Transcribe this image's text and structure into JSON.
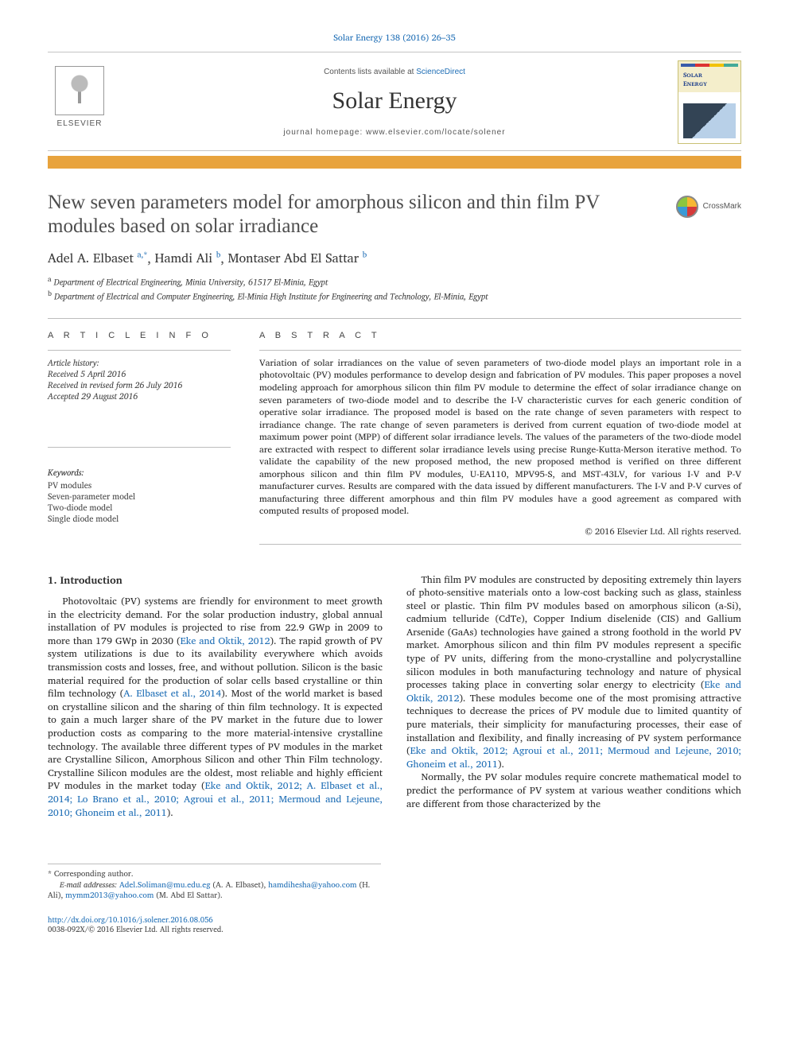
{
  "citation": {
    "text": "Solar Energy 138 (2016) 26–35"
  },
  "header": {
    "contents_prefix": "Contents lists available at ",
    "contents_link": "ScienceDirect",
    "journal": "Solar Energy",
    "homepage_prefix": "journal homepage: ",
    "homepage_url": "www.elsevier.com/locate/solener",
    "publisher_wordmark": "ELSEVIER",
    "cover_title_line1": "Solar",
    "cover_title_line2": "Energy"
  },
  "crossmark_label": "CrossMark",
  "title": "New seven parameters model for amorphous silicon and thin film PV modules based on solar irradiance",
  "authors": [
    {
      "name": "Adel A. Elbaset",
      "sup": "a,",
      "corr": "*"
    },
    {
      "name": "Hamdi Ali",
      "sup": "b"
    },
    {
      "name": "Montaser Abd El Sattar",
      "sup": "b"
    }
  ],
  "affiliations": [
    {
      "sup": "a",
      "text": "Department of Electrical Engineering, Minia University, 61517 El-Minia, Egypt"
    },
    {
      "sup": "b",
      "text": "Department of Electrical and Computer Engineering, El-Minia High Institute for Engineering and Technology, El-Minia, Egypt"
    }
  ],
  "info": {
    "heading": "A R T I C L E   I N F O",
    "history_label": "Article history:",
    "received": "Received 5 April 2016",
    "revised": "Received in revised form 26 July 2016",
    "accepted": "Accepted 29 August 2016",
    "keywords_label": "Keywords:",
    "keywords": [
      "PV modules",
      "Seven-parameter model",
      "Two-diode model",
      "Single diode model"
    ]
  },
  "abstract": {
    "heading": "A B S T R A C T",
    "text": "Variation of solar irradiances on the value of seven parameters of two-diode model plays an important role in a photovoltaic (PV) modules performance to develop design and fabrication of PV modules. This paper proposes a novel modeling approach for amorphous silicon thin film PV module to determine the effect of solar irradiance change on seven parameters of two-diode model and to describe the I-V characteristic curves for each generic condition of operative solar irradiance. The proposed model is based on the rate change of seven parameters with respect to irradiance change. The rate change of seven parameters is derived from current equation of two-diode model at maximum power point (MPP) of different solar irradiance levels. The values of the parameters of the two-diode model are extracted with respect to different solar irradiance levels using precise Runge-Kutta-Merson iterative method. To validate the capability of the new proposed method, the new proposed method is verified on three different amorphous silicon and thin film PV modules, U-EA110, MPV95-S, and MST-43LV, for various I-V and P-V manufacturer curves. Results are compared with the data issued by different manufacturers. The I-V and P-V curves of manufacturing three different amorphous and thin film PV modules have a good agreement as compared with computed results of proposed model.",
    "copyright": "© 2016 Elsevier Ltd. All rights reserved."
  },
  "body": {
    "section_number": "1.",
    "section_title": "Introduction",
    "p1a": "Photovoltaic (PV) systems are friendly for environment to meet growth in the electricity demand. For the solar production industry, global annual installation of PV modules is projected to rise from 22.9 GWp in 2009 to more than 179 GWp in 2030 (",
    "c1": "Eke and Oktik, 2012",
    "p1b": "). The rapid growth of PV system utilizations is due to its availability everywhere which avoids transmission costs and losses, free, and without pollution. Silicon is the basic material required for the production of solar cells based crystalline or thin film technology (",
    "c2": "A. Elbaset et al., 2014",
    "p1c": "). Most of the world market is based on crystalline silicon and the sharing of thin film technology. It is expected to gain a much larger share of the PV market in the future due to lower production costs as comparing to the more material-intensive crystalline technology. The available three different types of PV modules in the market are Crystalline Silicon, Amorphous Silicon and other Thin Film technology. Crystalline Silicon modules are the oldest, most reliable and highly efficient PV modules in the market today (",
    "c3": "Eke and Oktik, 2012; A. Elbaset et al., 2014; Lo Brano et al., 2010; Agroui et al., 2011; Mermoud and Lejeune, 2010; Ghoneim et al., 2011",
    "p1d": ").",
    "p2a": "Thin film PV modules are constructed by depositing extremely thin layers of photo-sensitive materials onto a low-cost backing such as glass, stainless steel or plastic. Thin film PV modules based on amorphous silicon (a-Si), cadmium telluride (CdTe), Copper Indium diselenide (CIS) and Gallium Arsenide (GaAs) technologies have gained a strong foothold in the world PV market. Amorphous silicon and thin film PV modules represent a specific type of PV units, differing from the mono-crystalline and polycrystalline silicon modules in both manufacturing technology and nature of physical processes taking place in converting solar energy to electricity (",
    "c4": "Eke and Oktik, 2012",
    "p2b": "). These modules become one of the most promising attractive techniques to decrease the prices of PV module due to limited quantity of pure materials, their simplicity for manufacturing processes, their ease of installation and flexibility, and finally increasing of PV system performance (",
    "c5": "Eke and Oktik, 2012; Agroui et al., 2011; Mermoud and Lejeune, 2010; Ghoneim et al., 2011",
    "p2c": ").",
    "p3": "Normally, the PV solar modules require concrete mathematical model to predict the performance of PV system at various weather conditions which are different from those characterized by the"
  },
  "footnotes": {
    "corr_label": "* Corresponding author.",
    "email_label": "E-mail addresses:",
    "emails": [
      {
        "addr": "Adel.Soliman@mu.edu.eg",
        "who": "(A. A. Elbaset),"
      },
      {
        "addr": "hamdihesha@yahoo.com",
        "who": "(H. Ali),"
      },
      {
        "addr": "mymm2013@yahoo.com",
        "who": "(M. Abd El Sattar)."
      }
    ],
    "doi": "http://dx.doi.org/10.1016/j.solener.2016.08.056",
    "issn_line": "0038-092X/© 2016 Elsevier Ltd. All rights reserved."
  },
  "colors": {
    "link": "#1d6db5",
    "amber": "#e8a33d",
    "rule": "#bdbdbd",
    "text": "#2b2b2b"
  }
}
